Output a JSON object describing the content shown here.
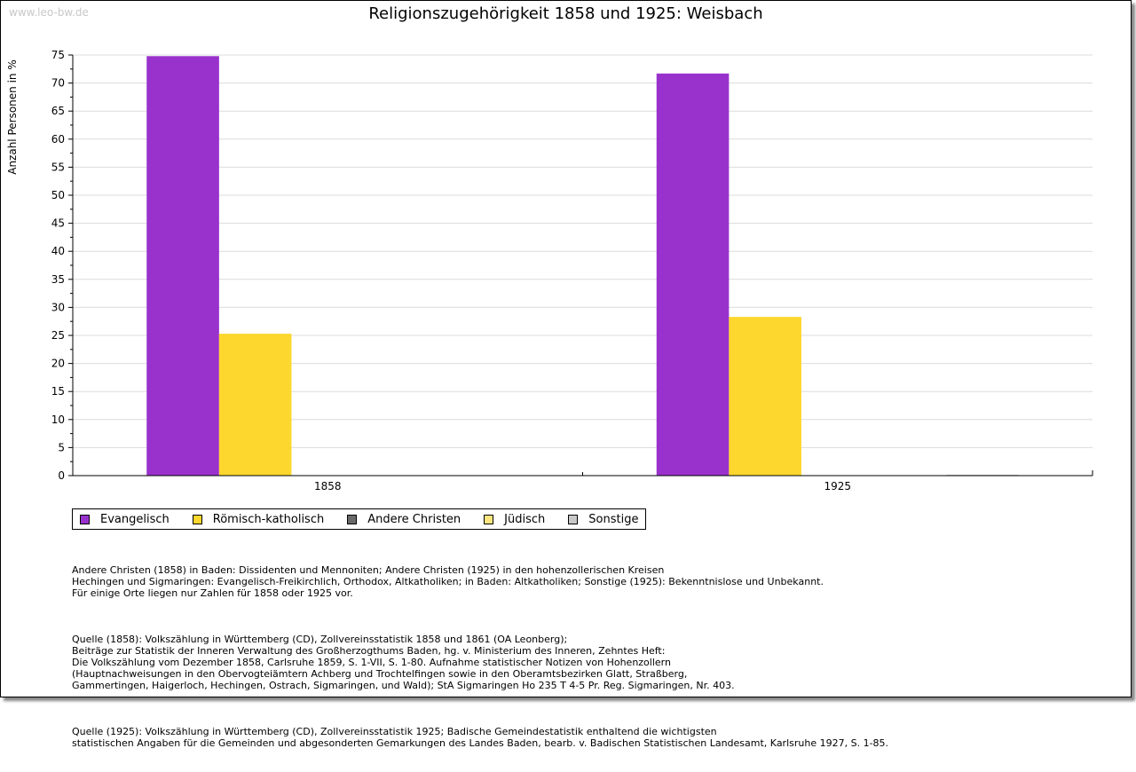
{
  "watermark": "www.leo-bw.de",
  "chart_data": {
    "type": "bar",
    "title": "Religionszugehörigkeit 1858 und 1925: Weisbach",
    "xlabel": "",
    "ylabel": "Anzahl Personen in %",
    "ylim": [
      0,
      75
    ],
    "yticks": [
      0,
      5,
      10,
      15,
      20,
      25,
      30,
      35,
      40,
      45,
      50,
      55,
      60,
      65,
      70,
      75
    ],
    "grid": true,
    "legend_position": "bottom-left",
    "categories": [
      "1858",
      "1925"
    ],
    "series": [
      {
        "name": "Evangelisch",
        "color": "#9932CC",
        "values": [
          74.8,
          71.7
        ]
      },
      {
        "name": "Römisch-katholisch",
        "color": "#FDD72E",
        "values": [
          25.3,
          28.3
        ]
      },
      {
        "name": "Andere Christen",
        "color": "#696969",
        "values": [
          0,
          0
        ]
      },
      {
        "name": "Jüdisch",
        "color": "#FFE680",
        "values": [
          0,
          0
        ]
      },
      {
        "name": "Sonstige",
        "color": "#C8C8C8",
        "values": [
          0,
          0.1
        ]
      }
    ]
  },
  "notes": [
    "Andere Christen (1858) in Baden: Dissidenten und Mennoniten; Andere Christen (1925) in den hohenzollerischen Kreisen\nHechingen und Sigmaringen: Evangelisch-Freikirchlich, Orthodox, Altkatholiken; in Baden: Altkatholiken; Sonstige (1925): Bekenntnislose und Unbekannt.\nFür einige Orte liegen nur Zahlen für 1858 oder 1925 vor.",
    "Quelle (1858): Volkszählung in Württemberg (CD), Zollvereinsstatistik 1858 und 1861 (OA Leonberg);\nBeiträge zur Statistik der Inneren Verwaltung des Großherzogthums Baden, hg. v. Ministerium des Inneren, Zehntes Heft:\nDie Volkszählung vom Dezember 1858, Carlsruhe 1859, S. 1-VII, S. 1-80. Aufnahme statistischer Notizen von Hohenzollern\n(Hauptnachweisungen in den Obervogteiämtern Achberg und Trochtelfingen sowie in den Oberamtsbezirken Glatt, Straßberg,\nGammertingen, Haigerloch, Hechingen, Ostrach, Sigmaringen, und Wald); StA Sigmaringen Ho 235 T 4-5 Pr. Reg. Sigmaringen, Nr. 403.",
    "Quelle (1925): Volkszählung in Württemberg (CD), Zollvereinsstatistik 1925; Badische Gemeindestatistik enthaltend die wichtigsten\nstatistischen Angaben für die Gemeinden und abgesonderten Gemarkungen des Landes Baden, bearb. v. Badischen Statistischen Landesamt, Karlsruhe 1927, S. 1-85."
  ]
}
